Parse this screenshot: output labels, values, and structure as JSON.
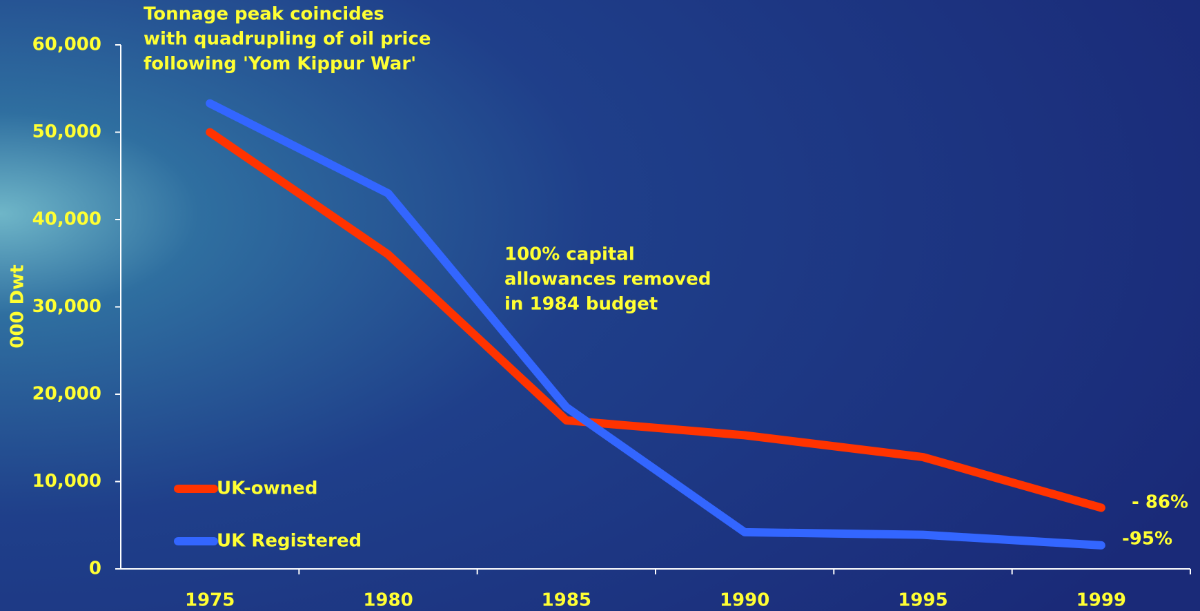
{
  "chart_data": {
    "type": "line",
    "y_label": "000 Dwt",
    "categories": [
      "1975",
      "1980",
      "1985",
      "1990",
      "1995",
      "1999"
    ],
    "series": [
      {
        "name": "UK-owned",
        "color": "#ff3300",
        "values": [
          50000,
          36000,
          17000,
          15300,
          12800,
          7000
        ]
      },
      {
        "name": "UK Registered",
        "color": "#3366ff",
        "values": [
          53300,
          43000,
          18500,
          4200,
          3900,
          2700
        ]
      }
    ],
    "ylim": [
      0,
      60000
    ],
    "yticks": [
      0,
      {
        "value": 10000,
        "label": "10,000"
      },
      {
        "value": 20000,
        "label": "20,000"
      },
      {
        "value": 30000,
        "label": "30,000"
      },
      {
        "value": 40000,
        "label": "40,000"
      },
      {
        "value": 50000,
        "label": "50,000"
      },
      {
        "value": 60000,
        "label": "60,000"
      }
    ],
    "annotations": [
      [
        "Tonnage peak coincides",
        "with quadrupling of oil price",
        "following 'Yom Kippur War'"
      ],
      [
        "100% capital",
        "allowances removed",
        "in 1984 budget"
      ]
    ],
    "end_labels": [
      "- 86%",
      "-95%"
    ]
  }
}
